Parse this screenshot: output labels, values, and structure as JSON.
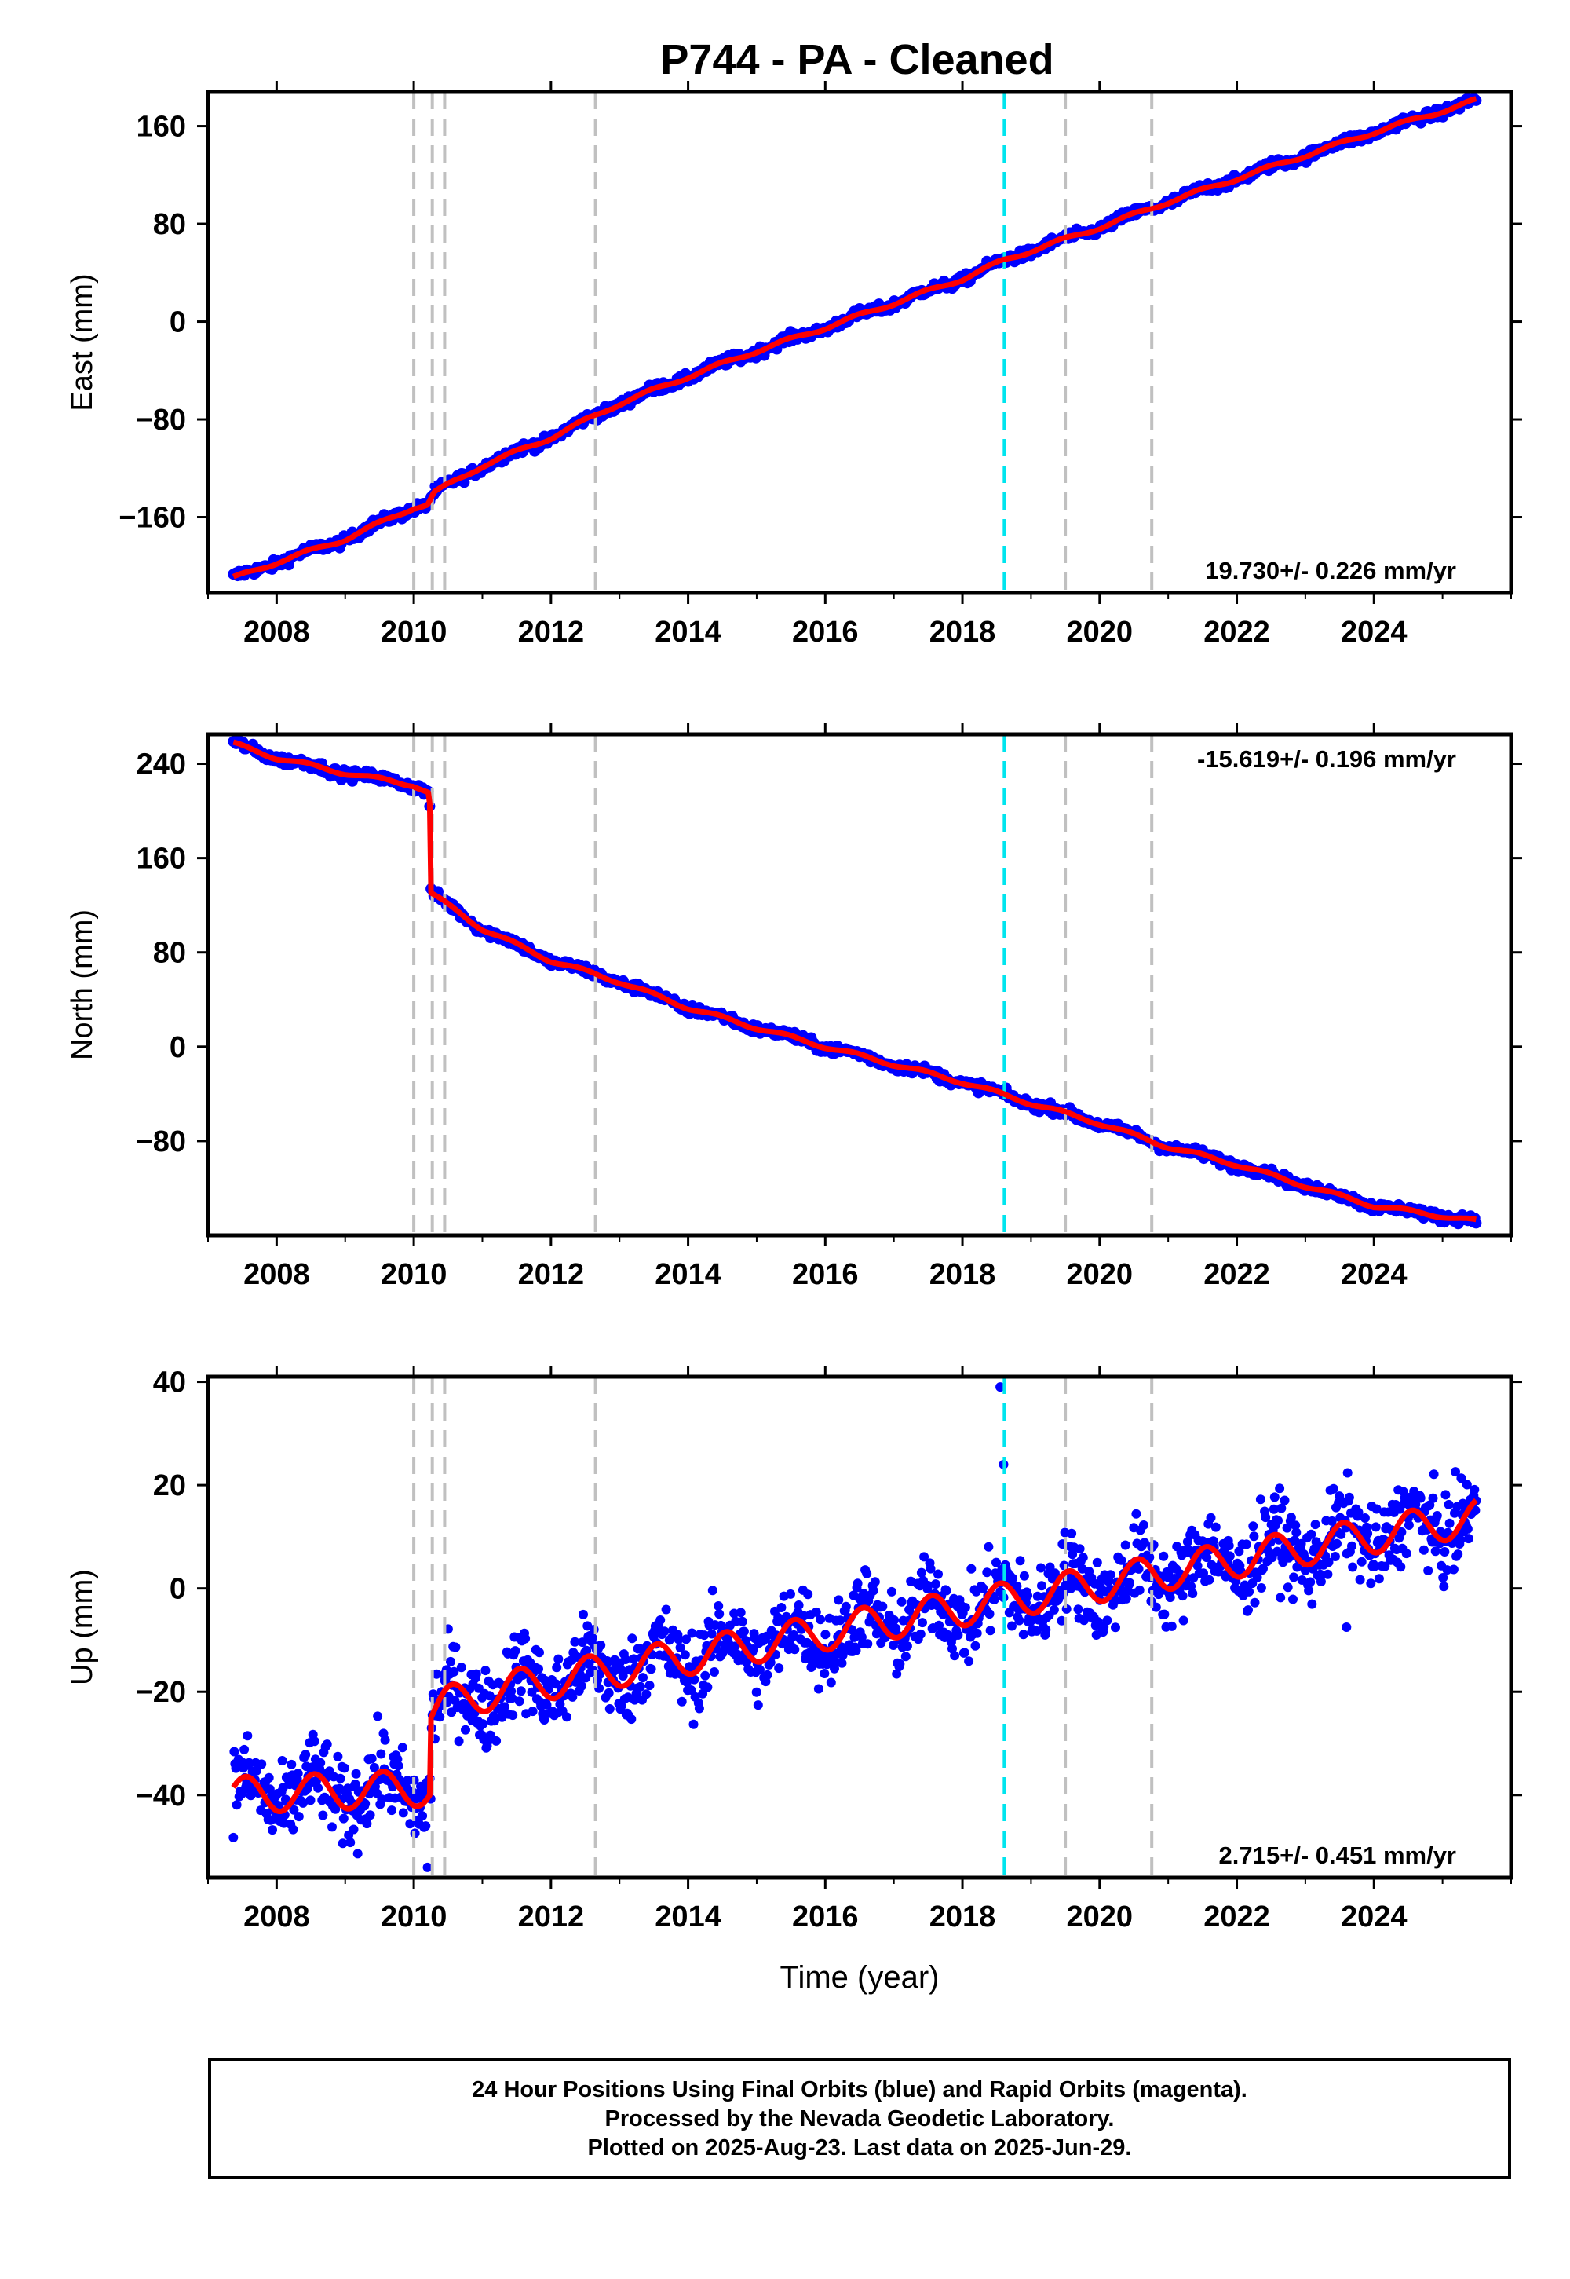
{
  "title": "P744  - PA - Cleaned",
  "footer": {
    "line1": "24 Hour Positions Using Final Orbits (blue) and Rapid Orbits (magenta).",
    "line2": "Processed by the Nevada Geodetic Laboratory.",
    "line3": "Plotted on 2025-Aug-23. Last data on 2025-Jun-29."
  },
  "colors": {
    "data": "#0000ff",
    "model": "#ff0000",
    "equipment_change": "#c0c0c0",
    "earthquake": "#00e5ee"
  },
  "chart_data": [
    {
      "type": "scatter",
      "panel": "east",
      "ylabel": "East (mm)",
      "xlabel": "",
      "xlim": [
        2007.0,
        2026.0
      ],
      "ylim": [
        -222,
        188
      ],
      "yticks": [
        -160,
        -80,
        0,
        80,
        160
      ],
      "xticks": [
        2008,
        2010,
        2012,
        2014,
        2016,
        2018,
        2020,
        2022,
        2024
      ],
      "rate_label": "19.730+/- 0.226 mm/yr",
      "rate_position": "bottom-right",
      "trend": [
        [
          2007.37,
          -210
        ],
        [
          2008.0,
          -197
        ],
        [
          2009.0,
          -178
        ],
        [
          2010.0,
          -152
        ],
        [
          2010.2,
          -150
        ],
        [
          2010.3,
          -140
        ],
        [
          2011.0,
          -118
        ],
        [
          2012.0,
          -95
        ],
        [
          2013.0,
          -67
        ],
        [
          2014.0,
          -45
        ],
        [
          2015.0,
          -24
        ],
        [
          2016.0,
          -5
        ],
        [
          2017.0,
          15
        ],
        [
          2018.0,
          35
        ],
        [
          2018.6,
          50
        ],
        [
          2019.0,
          58
        ],
        [
          2020.0,
          77
        ],
        [
          2021.0,
          98
        ],
        [
          2022.0,
          117
        ],
        [
          2023.0,
          136
        ],
        [
          2024.0,
          155
        ],
        [
          2025.49,
          181
        ]
      ],
      "series": [
        {
          "name": "Final Orbits",
          "noise": 2.0
        },
        {
          "name": "Rapid Orbits",
          "noise": 2.0
        }
      ]
    },
    {
      "type": "scatter",
      "panel": "north",
      "ylabel": "North (mm)",
      "xlabel": "",
      "xlim": [
        2007.0,
        2026.0
      ],
      "ylim": [
        -160,
        265
      ],
      "yticks": [
        -80,
        0,
        80,
        160,
        240
      ],
      "xticks": [
        2008,
        2010,
        2012,
        2014,
        2016,
        2018,
        2020,
        2022,
        2024
      ],
      "rate_label": "-15.619+/- 0.196 mm/yr",
      "rate_position": "top-right",
      "trend": [
        [
          2007.37,
          257
        ],
        [
          2008.0,
          245
        ],
        [
          2009.0,
          232
        ],
        [
          2010.0,
          222
        ],
        [
          2010.23,
          215
        ],
        [
          2010.25,
          130
        ],
        [
          2011.0,
          100
        ],
        [
          2012.0,
          73
        ],
        [
          2013.0,
          55
        ],
        [
          2014.0,
          33
        ],
        [
          2015.0,
          16
        ],
        [
          2016.0,
          0
        ],
        [
          2017.0,
          -15
        ],
        [
          2018.0,
          -30
        ],
        [
          2019.0,
          -48
        ],
        [
          2020.0,
          -65
        ],
        [
          2021.0,
          -85
        ],
        [
          2022.0,
          -100
        ],
        [
          2023.0,
          -118
        ],
        [
          2024.0,
          -135
        ],
        [
          2025.49,
          -148
        ]
      ],
      "series": [
        {
          "name": "Final Orbits",
          "noise": 2.0
        },
        {
          "name": "Rapid Orbits",
          "noise": 2.0
        }
      ]
    },
    {
      "type": "scatter",
      "panel": "up",
      "ylabel": "Up (mm)",
      "xlabel": "Time (year)",
      "xlim": [
        2007.0,
        2026.0
      ],
      "ylim": [
        -56,
        41
      ],
      "yticks": [
        -40,
        -20,
        0,
        20,
        40
      ],
      "xticks": [
        2008,
        2010,
        2012,
        2014,
        2016,
        2018,
        2020,
        2022,
        2024
      ],
      "rate_label": "2.715+/- 0.451 mm/yr",
      "rate_position": "bottom-right",
      "trend_before": {
        "x0": 2007.37,
        "x1": 2010.25,
        "offset": -40,
        "slope": 0.5,
        "amp": 3.5
      },
      "trend_after": {
        "x0": 2010.25,
        "x1": 2025.49,
        "offset": -22,
        "slope": 2.35,
        "amp": 3.5
      },
      "outliers": [
        [
          2018.55,
          39
        ],
        [
          2018.6,
          24
        ],
        [
          2023.6,
          -7.5
        ],
        [
          2010.2,
          -54
        ]
      ],
      "series": [
        {
          "name": "Final Orbits",
          "noise": 4.0
        },
        {
          "name": "Rapid Orbits",
          "noise": 4.0
        }
      ]
    }
  ],
  "event_lines": {
    "equipment_changes": [
      2010.0,
      2010.27,
      2010.45,
      2012.65,
      2019.5,
      2020.76
    ],
    "earthquakes": [
      2018.61
    ]
  }
}
